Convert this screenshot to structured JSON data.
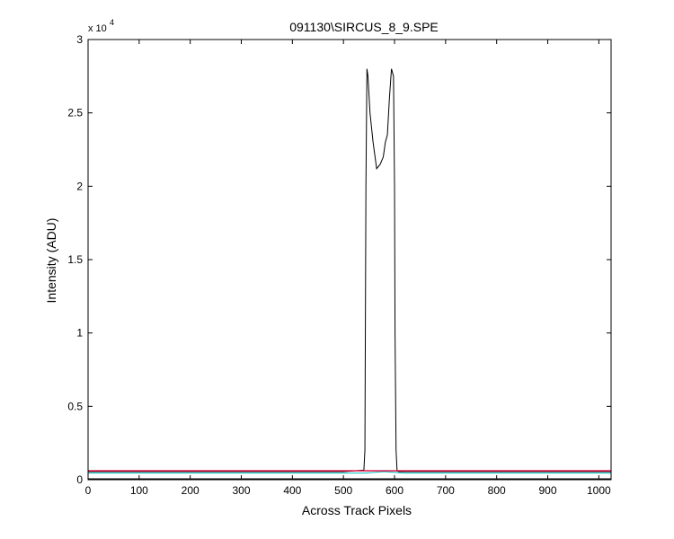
{
  "chart_data": {
    "type": "line",
    "title": "091130\\SIRCUS_8_9.SPE",
    "xlabel": "Across Track Pixels",
    "ylabel": "Intensity (ADU)",
    "xlim": [
      0,
      1024
    ],
    "ylim": [
      0,
      30000
    ],
    "xticks": [
      0,
      100,
      200,
      300,
      400,
      500,
      600,
      700,
      800,
      900,
      1000
    ],
    "yticks": [
      {
        "value": 0,
        "label": "0"
      },
      {
        "value": 5000,
        "label": "0.5"
      },
      {
        "value": 10000,
        "label": "1"
      },
      {
        "value": 15000,
        "label": "1.5"
      },
      {
        "value": 20000,
        "label": "2"
      },
      {
        "value": 25000,
        "label": "2.5"
      },
      {
        "value": 30000,
        "label": "3"
      }
    ],
    "y_exponent": {
      "base": "x 10",
      "power": "4"
    },
    "grid": false,
    "legend": "none",
    "series": [
      {
        "color": "#000000",
        "x": [
          0,
          100,
          200,
          300,
          400,
          500,
          540,
          542,
          544,
          546,
          548,
          552,
          558,
          565,
          572,
          578,
          580,
          582,
          586,
          590,
          594,
          598,
          600,
          601,
          603,
          605,
          608,
          700,
          800,
          900,
          1024
        ],
        "y": [
          550,
          550,
          550,
          550,
          550,
          550,
          650,
          2000,
          20000,
          28000,
          27500,
          25000,
          23000,
          21200,
          21500,
          22000,
          22500,
          23000,
          23500,
          26000,
          28000,
          27500,
          20000,
          10000,
          2000,
          600,
          550,
          550,
          550,
          550,
          550
        ]
      },
      {
        "color": "#00bfbf",
        "x": [
          0,
          200,
          400,
          540,
          560,
          580,
          600,
          620,
          800,
          1024
        ],
        "y": [
          450,
          450,
          450,
          450,
          500,
          550,
          500,
          450,
          450,
          450
        ]
      },
      {
        "color": "#bf00bf",
        "x": [
          0,
          256,
          512,
          768,
          1024
        ],
        "y": [
          600,
          600,
          600,
          600,
          600
        ]
      },
      {
        "color": "#0000ff",
        "x": [
          0,
          256,
          512,
          768,
          1024
        ],
        "y": [
          620,
          620,
          620,
          620,
          620
        ]
      },
      {
        "color": "#ff0000",
        "x": [
          0,
          256,
          512,
          768,
          1024
        ],
        "y": [
          610,
          610,
          610,
          610,
          610
        ]
      },
      {
        "color": "#000000",
        "x": [
          0,
          512,
          1024
        ],
        "y": [
          60,
          60,
          60
        ]
      }
    ]
  }
}
